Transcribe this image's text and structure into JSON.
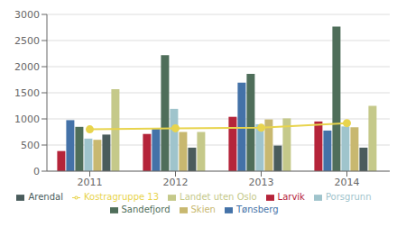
{
  "chart_data": {
    "type": "bar",
    "categories": [
      "2011",
      "2012",
      "2013",
      "2014"
    ],
    "series": [
      {
        "name": "Larvik",
        "color": "#b5243a",
        "values": [
          385,
          712,
          1040,
          951
        ]
      },
      {
        "name": "Tønsberg",
        "color": "#4472a8",
        "values": [
          976,
          819,
          1694,
          777
        ]
      },
      {
        "name": "Sandefjord",
        "color": "#4f6e5a",
        "values": [
          848,
          2218,
          1860,
          2769
        ]
      },
      {
        "name": "Porsgrunn",
        "color": "#9fc4cc",
        "values": [
          623,
          1192,
          898,
          856
        ]
      },
      {
        "name": "Skien",
        "color": "#c8b870",
        "values": [
          600,
          750,
          990,
          840
        ]
      },
      {
        "name": "Arendal",
        "color": "#4a5c5c",
        "values": [
          700,
          450,
          490,
          450
        ]
      },
      {
        "name": "Landet uten Oslo",
        "color": "#c5c98a",
        "values": [
          1570,
          750,
          1010,
          1250
        ]
      },
      {
        "name": "Kostragruppe 13",
        "type": "line",
        "color": "#e8d44d",
        "marker": "circle",
        "values": [
          800,
          820,
          830,
          920
        ]
      }
    ],
    "ylim": [
      0,
      3000
    ],
    "yticks": [
      0,
      500,
      1000,
      1500,
      2000,
      2500,
      3000
    ],
    "grid": true,
    "legend": "bottom"
  }
}
